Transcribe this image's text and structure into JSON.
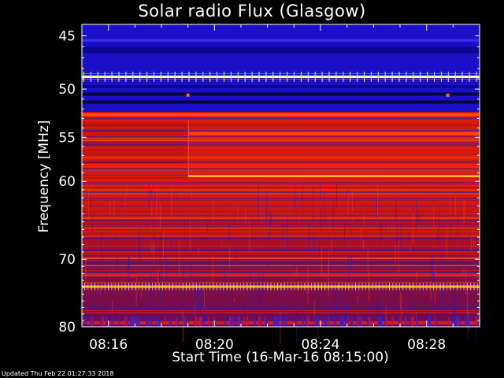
{
  "title": "Solar radio Flux (Glasgow)",
  "updated": "Updated Thu Feb 22 01:27:33 2018",
  "chart_data": {
    "type": "heatmap",
    "title": "Solar radio Flux (Glasgow)",
    "xlabel": "Start Time (16-Mar-16 08:15:00)",
    "ylabel": "Frequency [MHz]",
    "x_tick_labels": [
      "08:16",
      "08:20",
      "08:24",
      "08:28"
    ],
    "x_tick_minutes": [
      16,
      20,
      24,
      28
    ],
    "xlim_minutes": [
      15.0,
      30.0
    ],
    "y_tick_labels": [
      "45",
      "50",
      "55",
      "60",
      "70",
      "80"
    ],
    "y_tick_values": [
      45,
      50,
      55,
      60,
      70,
      80
    ],
    "ylim": [
      44,
      80
    ],
    "yscale": "log",
    "colormap": "black-blue-red-yellow-white",
    "features": [
      {
        "freq_mhz": 48.8,
        "level": "saturated",
        "note": "constant bright line"
      },
      {
        "freq_mhz": 50.5,
        "level": "low"
      },
      {
        "freq_mhz": 51.3,
        "level": "low"
      },
      {
        "freq_mhz": 52.6,
        "level": "high"
      },
      {
        "freq_mhz": 54.6,
        "level": "high",
        "start_minute": 19.0
      },
      {
        "freq_mhz": 59.4,
        "level": "bright",
        "start_minute": 19.0
      },
      {
        "freq_mhz": 73.9,
        "level": "bright"
      }
    ]
  }
}
